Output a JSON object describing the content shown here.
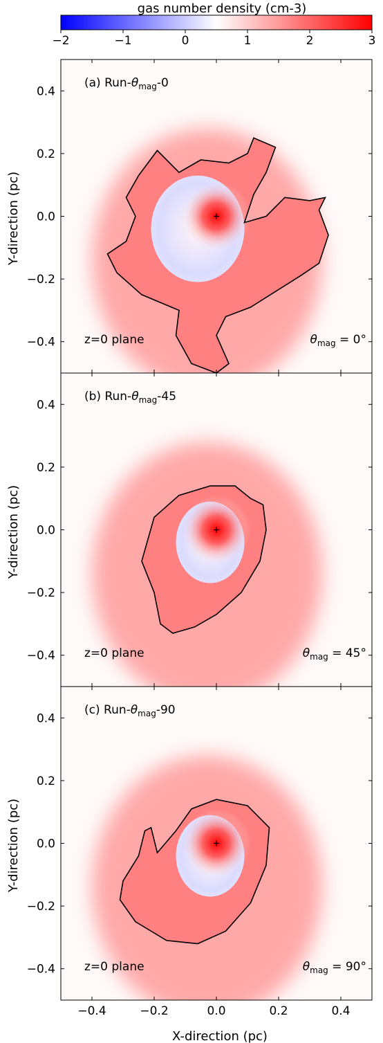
{
  "colorbar": {
    "label": "gas number density (cm-3)",
    "ticks": [
      -2,
      -1,
      0,
      1,
      2,
      3
    ],
    "range": [
      -2,
      3
    ],
    "colors": [
      "#0000ff",
      "#ffffff",
      "#ff0000"
    ],
    "center_value": 0.5
  },
  "chart_data": [
    {
      "type": "heatmap",
      "title": "(a) Run-θmag-0",
      "title_prefix": "(a) Run-",
      "title_suffix": "-0",
      "plane_label": "z=0 plane",
      "angle_label": "= 0°",
      "ylabel": "Y-direction (pc)",
      "xlabel": "",
      "xlim": [
        -0.5,
        0.5
      ],
      "ylim": [
        -0.5,
        0.5
      ],
      "xticks": [
        -0.4,
        -0.2,
        0.0,
        0.2,
        0.4
      ],
      "yticks": [
        -0.4,
        -0.2,
        0.0,
        0.2,
        0.4
      ],
      "center": [
        0,
        0
      ],
      "contour": [
        [
          -0.29,
          -0.08
        ],
        [
          -0.26,
          0.0
        ],
        [
          -0.29,
          0.06
        ],
        [
          -0.25,
          0.13
        ],
        [
          -0.19,
          0.21
        ],
        [
          -0.12,
          0.14
        ],
        [
          -0.05,
          0.18
        ],
        [
          0.04,
          0.17
        ],
        [
          0.1,
          0.2
        ],
        [
          0.12,
          0.25
        ],
        [
          0.19,
          0.22
        ],
        [
          0.16,
          0.14
        ],
        [
          0.12,
          0.07
        ],
        [
          0.09,
          -0.02
        ],
        [
          0.16,
          0.0
        ],
        [
          0.22,
          0.06
        ],
        [
          0.3,
          0.05
        ],
        [
          0.35,
          0.06
        ],
        [
          0.33,
          0.02
        ],
        [
          0.36,
          -0.06
        ],
        [
          0.33,
          -0.15
        ],
        [
          0.27,
          -0.19
        ],
        [
          0.19,
          -0.24
        ],
        [
          0.11,
          -0.29
        ],
        [
          0.03,
          -0.32
        ],
        [
          0.0,
          -0.38
        ],
        [
          0.04,
          -0.47
        ],
        [
          0.0,
          -0.5
        ],
        [
          -0.08,
          -0.47
        ],
        [
          -0.13,
          -0.38
        ],
        [
          -0.12,
          -0.3
        ],
        [
          -0.24,
          -0.25
        ],
        [
          -0.32,
          -0.18
        ],
        [
          -0.35,
          -0.12
        ]
      ]
    },
    {
      "type": "heatmap",
      "title": "(b) Run-θmag-45",
      "title_prefix": "(b) Run-",
      "title_suffix": "-45",
      "plane_label": "z=0 plane",
      "angle_label": "= 45°",
      "ylabel": "Y-direction (pc)",
      "xlabel": "",
      "xlim": [
        -0.5,
        0.5
      ],
      "ylim": [
        -0.5,
        0.5
      ],
      "xticks": [
        -0.4,
        -0.2,
        0.0,
        0.2,
        0.4
      ],
      "yticks": [
        -0.4,
        -0.2,
        0.0,
        0.2,
        0.4
      ],
      "center": [
        0,
        0
      ],
      "contour": [
        [
          -0.2,
          -0.2
        ],
        [
          -0.24,
          -0.1
        ],
        [
          -0.2,
          0.04
        ],
        [
          -0.12,
          0.11
        ],
        [
          -0.02,
          0.14
        ],
        [
          0.06,
          0.14
        ],
        [
          0.11,
          0.1
        ],
        [
          0.15,
          0.08
        ],
        [
          0.16,
          0.0
        ],
        [
          0.14,
          -0.1
        ],
        [
          0.08,
          -0.2
        ],
        [
          0.0,
          -0.27
        ],
        [
          -0.07,
          -0.31
        ],
        [
          -0.14,
          -0.33
        ],
        [
          -0.18,
          -0.3
        ]
      ]
    },
    {
      "type": "heatmap",
      "title": "(c) Run-θmag-90",
      "title_prefix": "(c) Run-",
      "title_suffix": "-90",
      "plane_label": "z=0 plane",
      "angle_label": "= 90°",
      "ylabel": "Y-direction (pc)",
      "xlabel": "X-direction (pc)",
      "xlim": [
        -0.5,
        0.5
      ],
      "ylim": [
        -0.5,
        0.5
      ],
      "xticks": [
        -0.4,
        -0.2,
        0.0,
        0.2,
        0.4
      ],
      "yticks": [
        -0.4,
        -0.2,
        0.0,
        0.2,
        0.4
      ],
      "center": [
        0,
        0
      ],
      "contour": [
        [
          -0.3,
          -0.12
        ],
        [
          -0.25,
          -0.04
        ],
        [
          -0.23,
          0.04
        ],
        [
          -0.21,
          0.05
        ],
        [
          -0.19,
          -0.03
        ],
        [
          -0.13,
          0.04
        ],
        [
          -0.08,
          0.11
        ],
        [
          0.0,
          0.14
        ],
        [
          0.1,
          0.12
        ],
        [
          0.17,
          0.05
        ],
        [
          0.16,
          -0.07
        ],
        [
          0.11,
          -0.19
        ],
        [
          0.03,
          -0.28
        ],
        [
          -0.06,
          -0.32
        ],
        [
          -0.16,
          -0.31
        ],
        [
          -0.26,
          -0.25
        ],
        [
          -0.31,
          -0.18
        ]
      ]
    }
  ]
}
